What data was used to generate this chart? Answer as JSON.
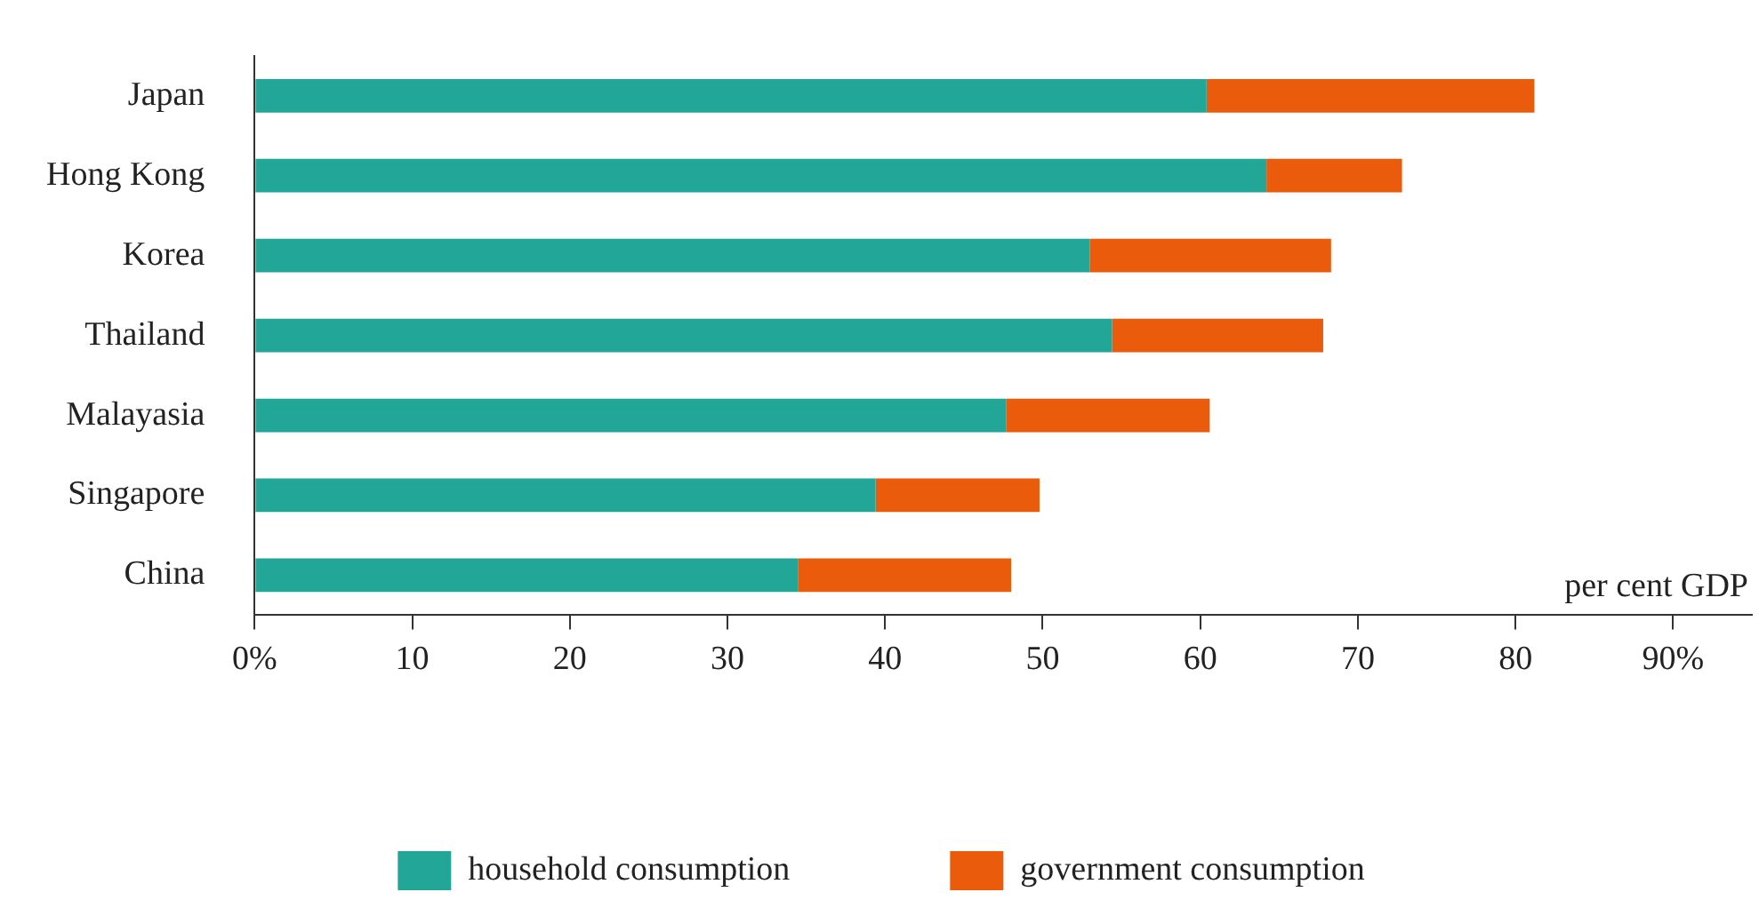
{
  "chart_data": {
    "type": "bar",
    "orientation": "horizontal",
    "stacked": true,
    "categories": [
      "Japan",
      "Hong Kong",
      "Korea",
      "Thailand",
      "Malayasia",
      "Singapore",
      "China"
    ],
    "series": [
      {
        "name": "household consumption",
        "color": "#21a698",
        "values": [
          60.4,
          64.2,
          53.0,
          54.4,
          47.7,
          39.4,
          34.5
        ]
      },
      {
        "name": "government consumption",
        "color": "#eb5b0c",
        "values": [
          20.8,
          8.6,
          15.3,
          13.4,
          12.9,
          10.4,
          13.5
        ]
      }
    ],
    "xlim": [
      0,
      95
    ],
    "xticks": [
      {
        "value": 0,
        "label": "0%"
      },
      10,
      20,
      30,
      40,
      50,
      60,
      70,
      80,
      {
        "value": 90,
        "label": "90%"
      }
    ],
    "annotations": [
      "per cent GDP"
    ],
    "grid": false,
    "legend": "bottom"
  }
}
